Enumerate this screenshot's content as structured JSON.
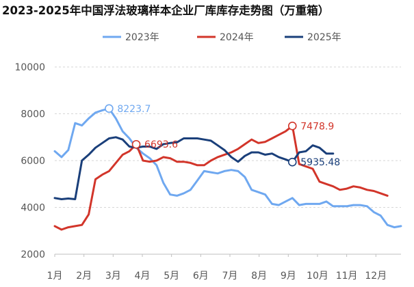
{
  "chart_data": {
    "type": "line",
    "title": "2023-2025年中国浮法玻璃样本企业厂库库存走势图（万重箱）",
    "ylim": [
      2000,
      10000
    ],
    "y_ticks": [
      "2000",
      "4000",
      "6000",
      "8000",
      "10000"
    ],
    "x_week_range": [
      1,
      52
    ],
    "x_tick_labels": [
      "1月",
      "2月",
      "3月",
      "4月",
      "5月",
      "6月",
      "7月",
      "8月",
      "9月",
      "10月",
      "11月",
      "12月"
    ],
    "x_tick_weeks": [
      1,
      5.3,
      9.6,
      13.9,
      18.2,
      22.5,
      26.8,
      31.1,
      35.4,
      39.7,
      44,
      48.3
    ],
    "grid": true,
    "legend_position": "top",
    "series": [
      {
        "name": "2023年",
        "color": "#6fa8f0",
        "values": [
          6400,
          6150,
          6450,
          7600,
          7500,
          7800,
          8050,
          8150,
          8223.7,
          7800,
          7250,
          6950,
          6550,
          6300,
          6100,
          5800,
          5050,
          4550,
          4500,
          4600,
          4750,
          5150,
          5550,
          5500,
          5450,
          5550,
          5600,
          5550,
          5300,
          4750,
          4650,
          4550,
          4150,
          4100,
          4250,
          4400,
          4100,
          4150,
          4150,
          4150,
          4250,
          4050,
          4050,
          4050,
          4100,
          4100,
          4050,
          3800,
          3650,
          3250,
          3150,
          3200
        ]
      },
      {
        "name": "2024年",
        "color": "#d2352a",
        "values": [
          3200,
          3050,
          3150,
          3200,
          3250,
          3700,
          5200,
          5400,
          5550,
          5900,
          6250,
          6400,
          6693.6,
          6000,
          5950,
          6000,
          6150,
          6100,
          5950,
          5950,
          5900,
          5800,
          5800,
          6000,
          6150,
          6250,
          6350,
          6500,
          6700,
          6900,
          6750,
          6800,
          6950,
          7100,
          7250,
          7478.9,
          5850,
          5750,
          5650,
          5100,
          5000,
          4900,
          4750,
          4800,
          4900,
          4850,
          4750,
          4700,
          4600,
          4500
        ]
      },
      {
        "name": "2025年",
        "color": "#1a3f7a",
        "values": [
          4400,
          4350,
          4380,
          4350,
          6000,
          6250,
          6550,
          6750,
          6950,
          7000,
          6900,
          6600,
          6550,
          6600,
          6600,
          6500,
          6700,
          6750,
          6780,
          6950,
          6950,
          6950,
          6900,
          6850,
          6650,
          6450,
          6150,
          5950,
          6200,
          6350,
          6350,
          6250,
          6300,
          6150,
          6050,
          5935.48,
          6350,
          6400,
          6650,
          6550,
          6300,
          6300
        ]
      }
    ],
    "annotations": [
      {
        "series": "2023年",
        "week": 9,
        "value": 8223.7,
        "label": "8223.7"
      },
      {
        "series": "2024年",
        "week": 13,
        "value": 6693.6,
        "label": "6693.6"
      },
      {
        "series": "2024年",
        "week": 36,
        "value": 7478.9,
        "label": "7478.9"
      },
      {
        "series": "2025年",
        "week": 36,
        "value": 5935.48,
        "label": "5935.48"
      }
    ]
  }
}
